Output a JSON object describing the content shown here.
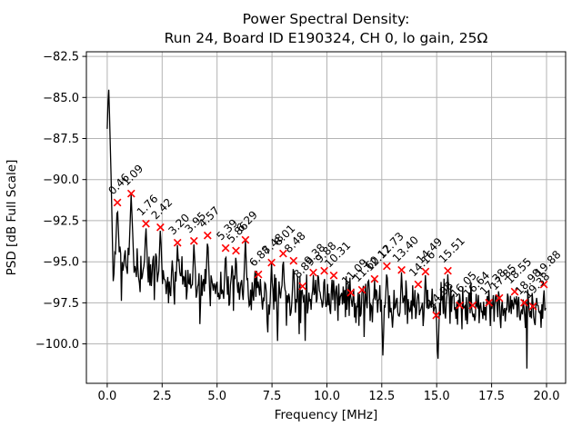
{
  "chart_data": {
    "type": "line",
    "title_lines": [
      "Power Spectral Density:",
      "Run 24, Board ID E190324, CH 0, lo gain, 25Ω"
    ],
    "title": "Power Spectral Density: Run 24, Board ID E190324, CH 0, lo gain, 25Ω",
    "xlabel": "Frequency [MHz]",
    "ylabel": "PSD [dB Full Scale]",
    "xlim": [
      -0.95,
      20.87
    ],
    "ylim": [
      -102.4,
      -82.22
    ],
    "grid": true,
    "grid_color": "#b3b3b3",
    "line_color": "#000000",
    "marker_style": "x",
    "marker_color": "#ff0000",
    "annotation_color": "#000000",
    "annotation_rotation_deg": 45,
    "x_ticks": [
      {
        "v": 0.0,
        "label": "0.0"
      },
      {
        "v": 2.5,
        "label": "2.5"
      },
      {
        "v": 5.0,
        "label": "5.0"
      },
      {
        "v": 7.5,
        "label": "7.5"
      },
      {
        "v": 10.0,
        "label": "10.0"
      },
      {
        "v": 12.5,
        "label": "12.5"
      },
      {
        "v": 15.0,
        "label": "15.0"
      },
      {
        "v": 17.5,
        "label": "17.5"
      },
      {
        "v": 20.0,
        "label": "20.0"
      }
    ],
    "y_ticks": [
      {
        "v": -82.5,
        "label": "−82.5"
      },
      {
        "v": -85.0,
        "label": "−85.0"
      },
      {
        "v": -87.5,
        "label": "−87.5"
      },
      {
        "v": -90.0,
        "label": "−90.0"
      },
      {
        "v": -92.5,
        "label": "−92.5"
      },
      {
        "v": -95.0,
        "label": "−95.0"
      },
      {
        "v": -97.5,
        "label": "−97.5"
      },
      {
        "v": -100.0,
        "label": "−100.0"
      }
    ],
    "peaks": [
      {
        "label": "0.46",
        "freq": 0.46,
        "psd": -91.4
      },
      {
        "label": "1.09",
        "freq": 1.09,
        "psd": -90.85
      },
      {
        "label": "1.76",
        "freq": 1.76,
        "psd": -92.68
      },
      {
        "label": "2.42",
        "freq": 2.42,
        "psd": -92.9
      },
      {
        "label": "3.20",
        "freq": 3.2,
        "psd": -93.84
      },
      {
        "label": "3.95",
        "freq": 3.95,
        "psd": -93.73
      },
      {
        "label": "4.57",
        "freq": 4.57,
        "psd": -93.4
      },
      {
        "label": "5.39",
        "freq": 5.39,
        "psd": -94.17
      },
      {
        "label": "5.86",
        "freq": 5.86,
        "psd": -94.33
      },
      {
        "label": "6.29",
        "freq": 6.29,
        "psd": -93.67
      },
      {
        "label": "6.88",
        "freq": 6.88,
        "psd": -95.77
      },
      {
        "label": "7.48",
        "freq": 7.48,
        "psd": -95.05
      },
      {
        "label": "8.01",
        "freq": 8.01,
        "psd": -94.5
      },
      {
        "label": "8.48",
        "freq": 8.48,
        "psd": -94.94
      },
      {
        "label": "8.89",
        "freq": 8.89,
        "psd": -96.49
      },
      {
        "label": "9.38",
        "freq": 9.38,
        "psd": -95.66
      },
      {
        "label": "9.88",
        "freq": 9.88,
        "psd": -95.55
      },
      {
        "label": "10.31",
        "freq": 10.31,
        "psd": -95.83
      },
      {
        "label": "11.09",
        "freq": 11.09,
        "psd": -96.88
      },
      {
        "label": "11.60",
        "freq": 11.6,
        "psd": -96.71
      },
      {
        "label": "12.17",
        "freq": 12.17,
        "psd": -96.05
      },
      {
        "label": "12.73",
        "freq": 12.73,
        "psd": -95.27
      },
      {
        "label": "13.40",
        "freq": 13.4,
        "psd": -95.5
      },
      {
        "label": "14.16",
        "freq": 14.16,
        "psd": -96.38
      },
      {
        "label": "14.49",
        "freq": 14.49,
        "psd": -95.6
      },
      {
        "label": "14.98",
        "freq": 14.98,
        "psd": -98.26
      },
      {
        "label": "15.51",
        "freq": 15.51,
        "psd": -95.55
      },
      {
        "label": "16.05",
        "freq": 16.05,
        "psd": -97.65
      },
      {
        "label": "16.64",
        "freq": 16.64,
        "psd": -97.65
      },
      {
        "label": "17.38",
        "freq": 17.38,
        "psd": -97.49
      },
      {
        "label": "17.85",
        "freq": 17.85,
        "psd": -97.21
      },
      {
        "label": "18.55",
        "freq": 18.55,
        "psd": -96.82
      },
      {
        "label": "18.98",
        "freq": 18.98,
        "psd": -97.49
      },
      {
        "label": "19.38",
        "freq": 19.38,
        "psd": -97.71
      },
      {
        "label": "19.88",
        "freq": 19.88,
        "psd": -96.38
      }
    ],
    "noise_floor_dips": [
      {
        "freq": 7.3,
        "psd": -99.8
      },
      {
        "freq": 12.55,
        "psd": -100.9
      },
      {
        "freq": 15.05,
        "psd": -101.5
      }
    ],
    "noise_trace": {
      "seed": 42,
      "df": 0.034,
      "f_max": 19.96,
      "floor_start": -94.8,
      "floor_drop": 3.0,
      "floor_tau": 5.0,
      "noise_amp": 1.7,
      "dip_prob": 0.06,
      "dip_amp": 2.6,
      "clamp_min": -101.8,
      "peak_slope": 36,
      "notch_slope": 50,
      "dc_spike": {
        "freq": 0.06,
        "psd": -84.3,
        "width": 0.12
      }
    }
  }
}
